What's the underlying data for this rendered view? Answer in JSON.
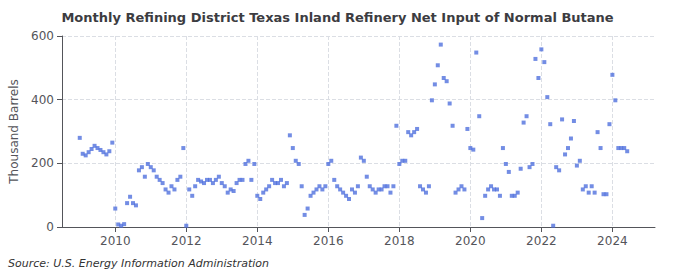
{
  "chart_data": {
    "type": "scatter",
    "title": "Monthly Refining District Texas Inland Refinery Net Input of Normal Butane",
    "ylabel": "Thousand Barrels",
    "annotations": [
      "Source: U.S. Energy Information Administration"
    ],
    "marker": "square",
    "grid": true,
    "xlim": [
      2008.5,
      2025.2
    ],
    "xticks": [
      2010,
      2012,
      2014,
      2016,
      2018,
      2020,
      2022,
      2024
    ],
    "ylim": [
      0,
      600
    ],
    "yticks": [
      0,
      200,
      400,
      600
    ],
    "x": [
      2009.0,
      2009.083,
      2009.167,
      2009.25,
      2009.333,
      2009.417,
      2009.5,
      2009.583,
      2009.667,
      2009.75,
      2009.833,
      2009.917,
      2010.0,
      2010.083,
      2010.167,
      2010.25,
      2010.333,
      2010.417,
      2010.5,
      2010.583,
      2010.667,
      2010.75,
      2010.833,
      2010.917,
      2011.0,
      2011.083,
      2011.167,
      2011.25,
      2011.333,
      2011.417,
      2011.5,
      2011.583,
      2011.667,
      2011.75,
      2011.833,
      2011.917,
      2012.0,
      2012.083,
      2012.167,
      2012.25,
      2012.333,
      2012.417,
      2012.5,
      2012.583,
      2012.667,
      2012.75,
      2012.833,
      2012.917,
      2013.0,
      2013.083,
      2013.167,
      2013.25,
      2013.333,
      2013.417,
      2013.5,
      2013.583,
      2013.667,
      2013.75,
      2013.833,
      2013.917,
      2014.0,
      2014.083,
      2014.167,
      2014.25,
      2014.333,
      2014.417,
      2014.5,
      2014.583,
      2014.667,
      2014.75,
      2014.833,
      2014.917,
      2015.0,
      2015.083,
      2015.167,
      2015.25,
      2015.333,
      2015.417,
      2015.5,
      2015.583,
      2015.667,
      2015.75,
      2015.833,
      2015.917,
      2016.0,
      2016.083,
      2016.167,
      2016.25,
      2016.333,
      2016.417,
      2016.5,
      2016.583,
      2016.667,
      2016.75,
      2016.833,
      2016.917,
      2017.0,
      2017.083,
      2017.167,
      2017.25,
      2017.333,
      2017.417,
      2017.5,
      2017.583,
      2017.667,
      2017.75,
      2017.833,
      2017.917,
      2018.0,
      2018.083,
      2018.167,
      2018.25,
      2018.333,
      2018.417,
      2018.5,
      2018.583,
      2018.667,
      2018.75,
      2018.833,
      2018.917,
      2019.0,
      2019.083,
      2019.167,
      2019.25,
      2019.333,
      2019.417,
      2019.5,
      2019.583,
      2019.667,
      2019.75,
      2019.833,
      2019.917,
      2020.0,
      2020.083,
      2020.167,
      2020.25,
      2020.333,
      2020.417,
      2020.5,
      2020.583,
      2020.667,
      2020.75,
      2020.833,
      2020.917,
      2021.0,
      2021.083,
      2021.167,
      2021.25,
      2021.333,
      2021.417,
      2021.5,
      2021.583,
      2021.667,
      2021.75,
      2021.833,
      2021.917,
      2022.0,
      2022.083,
      2022.167,
      2022.25,
      2022.333,
      2022.417,
      2022.5,
      2022.583,
      2022.667,
      2022.75,
      2022.833,
      2022.917,
      2023.0,
      2023.083,
      2023.167,
      2023.25,
      2023.333,
      2023.417,
      2023.5,
      2023.583,
      2023.667,
      2023.75,
      2023.833,
      2023.917,
      2024.0,
      2024.083,
      2024.167,
      2024.25,
      2024.333,
      2024.417
    ],
    "values": [
      280,
      230,
      225,
      235,
      245,
      255,
      248,
      242,
      235,
      228,
      238,
      265,
      58,
      8,
      4,
      9,
      75,
      95,
      75,
      68,
      178,
      188,
      158,
      198,
      188,
      178,
      158,
      148,
      138,
      118,
      108,
      128,
      118,
      148,
      158,
      248,
      4,
      118,
      98,
      128,
      148,
      143,
      138,
      148,
      148,
      138,
      148,
      158,
      138,
      128,
      108,
      118,
      113,
      138,
      148,
      148,
      198,
      208,
      148,
      198,
      98,
      88,
      108,
      118,
      128,
      148,
      138,
      138,
      148,
      128,
      138,
      288,
      248,
      208,
      198,
      128,
      38,
      58,
      98,
      108,
      118,
      128,
      118,
      128,
      198,
      208,
      148,
      128,
      118,
      108,
      98,
      88,
      118,
      108,
      128,
      218,
      208,
      158,
      128,
      118,
      108,
      118,
      118,
      128,
      128,
      108,
      128,
      318,
      198,
      208,
      208,
      298,
      288,
      298,
      308,
      128,
      118,
      108,
      128,
      398,
      448,
      508,
      573,
      468,
      458,
      388,
      318,
      108,
      118,
      128,
      118,
      308,
      248,
      243,
      548,
      348,
      28,
      98,
      118,
      128,
      118,
      118,
      98,
      248,
      198,
      173,
      98,
      98,
      108,
      183,
      328,
      348,
      188,
      198,
      528,
      468,
      558,
      518,
      408,
      323,
      4,
      188,
      178,
      338,
      228,
      248,
      278,
      333,
      193,
      208,
      118,
      128,
      108,
      128,
      108,
      298,
      248,
      103,
      103,
      323,
      478,
      398,
      248,
      248,
      248,
      238
    ]
  }
}
